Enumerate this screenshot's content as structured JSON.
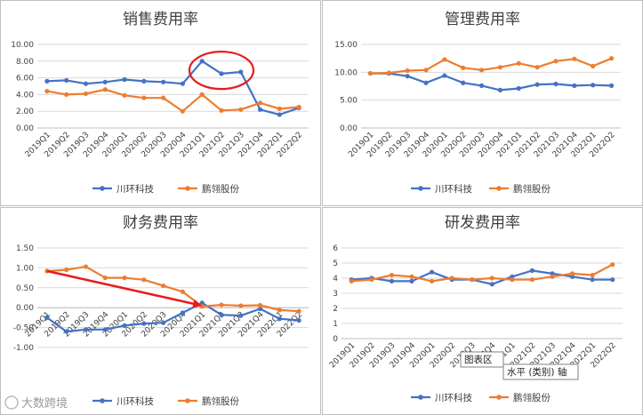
{
  "colors": {
    "series1": "#4472C4",
    "series2": "#ED7D31",
    "grid": "#d9d9d9",
    "axis": "#bfbfbf",
    "annotation": "#e81c1c"
  },
  "chart_data": [
    {
      "type": "line",
      "title": "销售费用率",
      "categories": [
        "2019Q1",
        "2019Q2",
        "2019Q3",
        "2019Q4",
        "2020Q1",
        "2020Q2",
        "2020Q3",
        "2020Q4",
        "2021Q1",
        "2021Q2",
        "2021Q3",
        "2021Q4",
        "2022Q1",
        "2022Q2"
      ],
      "ylim": [
        0,
        10
      ],
      "yticks": [
        "0.00",
        "2.00",
        "4.00",
        "6.00",
        "8.00",
        "10.00"
      ],
      "grid": true,
      "legend": "bottom",
      "series": [
        {
          "name": "川环科技",
          "values": [
            5.6,
            5.7,
            5.3,
            5.5,
            5.8,
            5.6,
            5.5,
            5.3,
            8.0,
            6.5,
            6.7,
            2.2,
            1.6,
            2.4
          ]
        },
        {
          "name": "鹏翎股份",
          "values": [
            4.4,
            4.0,
            4.1,
            4.6,
            3.9,
            3.6,
            3.6,
            2.0,
            4.0,
            2.1,
            2.2,
            3.0,
            2.3,
            2.5
          ]
        }
      ],
      "annotation": "ellipse around 2021Q1–2021Q3 peak"
    },
    {
      "type": "line",
      "title": "管理费用率",
      "categories": [
        "2019Q1",
        "2019Q2",
        "2019Q3",
        "2019Q4",
        "2020Q1",
        "2020Q2",
        "2020Q3",
        "2020Q4",
        "2021Q1",
        "2021Q2",
        "2021Q3",
        "2021Q4",
        "2022Q1",
        "2022Q2"
      ],
      "ylim": [
        0,
        15
      ],
      "yticks": [
        "0.00",
        "5.00",
        "10.00",
        "15.00"
      ],
      "grid": true,
      "legend": "bottom",
      "series": [
        {
          "name": "川环科技",
          "values": [
            9.8,
            9.8,
            9.3,
            8.1,
            9.4,
            8.1,
            7.6,
            6.8,
            7.1,
            7.8,
            7.9,
            7.6,
            7.7,
            7.6
          ]
        },
        {
          "name": "鹏翎股份",
          "values": [
            9.8,
            9.9,
            10.3,
            10.4,
            12.3,
            10.8,
            10.4,
            10.9,
            11.6,
            10.9,
            12.0,
            12.4,
            11.1,
            12.5
          ]
        }
      ]
    },
    {
      "type": "line",
      "title": "财务费用率",
      "categories": [
        "2019Q1",
        "2019Q2",
        "2019Q3",
        "2019Q4",
        "2020Q1",
        "2020Q2",
        "2020Q3",
        "2020Q4",
        "2021Q1",
        "2021Q2",
        "2021Q3",
        "2021Q4",
        "2022Q1",
        "2022Q2"
      ],
      "ylim": [
        -1.0,
        1.5
      ],
      "yticks": [
        "-1.00",
        "-0.50",
        "0.00",
        "0.50",
        "1.00",
        "1.50"
      ],
      "grid": true,
      "legend": "bottom",
      "series": [
        {
          "name": "川环科技",
          "values": [
            -0.25,
            -0.6,
            -0.55,
            -0.55,
            -0.45,
            -0.4,
            -0.38,
            -0.13,
            0.12,
            -0.18,
            -0.2,
            -0.03,
            -0.28,
            -0.32
          ]
        },
        {
          "name": "鹏翎股份",
          "values": [
            0.92,
            0.95,
            1.03,
            0.75,
            0.75,
            0.7,
            0.55,
            0.4,
            0.03,
            0.07,
            0.05,
            0.06,
            -0.06,
            -0.09
          ]
        }
      ],
      "annotation": "arrow from 2019Q1 down to 2021Q1"
    },
    {
      "type": "line",
      "title": "研发费用率",
      "categories": [
        "2019Q1",
        "2019Q2",
        "2019Q3",
        "2019Q4",
        "2020Q1",
        "2020Q2",
        "2020Q3",
        "2020Q4",
        "2021Q1",
        "2021Q2",
        "2021Q3",
        "2021Q4",
        "2022Q1",
        "2022Q2"
      ],
      "ylim": [
        0,
        6
      ],
      "yticks": [
        "0",
        "1",
        "2",
        "3",
        "4",
        "5",
        "6"
      ],
      "grid": true,
      "legend": "bottom",
      "series": [
        {
          "name": "川环科技",
          "values": [
            3.9,
            4.0,
            3.8,
            3.8,
            4.4,
            3.9,
            3.9,
            3.6,
            4.1,
            4.5,
            4.3,
            4.1,
            3.9,
            3.9
          ]
        },
        {
          "name": "鹏翎股份",
          "values": [
            3.8,
            3.9,
            4.2,
            4.1,
            3.8,
            4.0,
            3.9,
            4.0,
            3.9,
            3.9,
            4.1,
            4.3,
            4.2,
            4.9
          ]
        }
      ]
    }
  ],
  "tooltip": {
    "label1": "图表区",
    "label2": "水平 (类别) 轴"
  },
  "watermark": "大数跨境"
}
